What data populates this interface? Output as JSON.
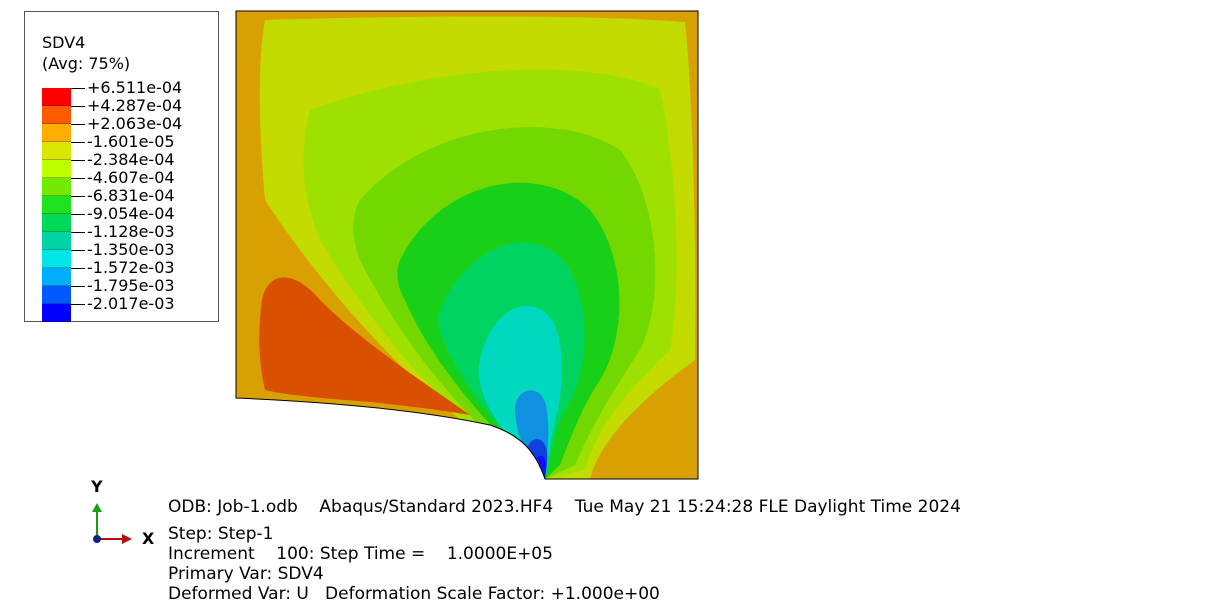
{
  "legend": {
    "variable": "SDV4",
    "averaging": "(Avg: 75%)",
    "levels": [
      {
        "label": "+6.511e-04",
        "color": "#ff0000"
      },
      {
        "label": "+4.287e-04",
        "color": "#ff5a00"
      },
      {
        "label": "+2.063e-04",
        "color": "#ffae00"
      },
      {
        "label": "-1.601e-05",
        "color": "#d8e600"
      },
      {
        "label": "-2.384e-04",
        "color": "#bfff00"
      },
      {
        "label": "-4.607e-04",
        "color": "#74ea00"
      },
      {
        "label": "-6.831e-04",
        "color": "#1ee21e"
      },
      {
        "label": "-9.054e-04",
        "color": "#00d85a"
      },
      {
        "label": "-1.128e-03",
        "color": "#00d4a6"
      },
      {
        "label": "-1.350e-03",
        "color": "#00e6e6"
      },
      {
        "label": "-1.572e-03",
        "color": "#00aeff"
      },
      {
        "label": "-1.795e-03",
        "color": "#005aff"
      },
      {
        "label": "-2.017e-03",
        "color": "#0000ff"
      }
    ]
  },
  "contour_colors": {
    "outer": "#d8a000",
    "band_a": "#c4db00",
    "band_b": "#9ee000",
    "band_c": "#72d800",
    "band_d": "#18d018",
    "band_e": "#00d460",
    "band_f": "#00d8c0",
    "band_g": "#1090e0",
    "band_h": "#1040e0",
    "band_i": "#1010ff",
    "hot_region": "#d85000"
  },
  "triad": {
    "y_label": "Y",
    "x_label": "X"
  },
  "info": {
    "line1": "ODB: Job-1.odb    Abaqus/Standard 2023.HF4    Tue May 21 15:24:28 FLE Daylight Time 2024",
    "line2": "Step: Step-1",
    "line3": "Increment    100: Step Time =    1.0000E+05",
    "line4": "Primary Var: SDV4",
    "line5": "Deformed Var: U   Deformation Scale Factor: +1.000e+00"
  }
}
